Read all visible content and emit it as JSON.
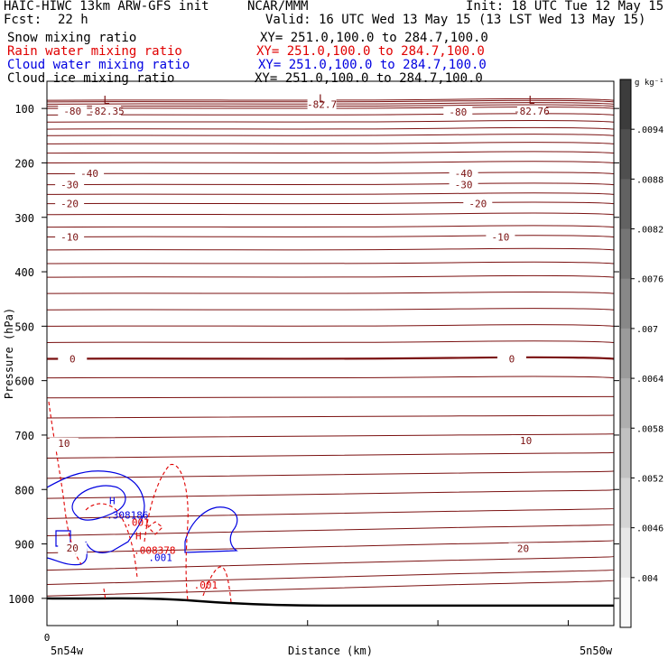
{
  "header": {
    "model": "HAIC-HIWC 13km ARW-GFS init",
    "org": "NCAR/MMM",
    "init": "Init: 18 UTC Tue 12 May 15",
    "fcst_label": "Fcst:",
    "fcst_value": "22 h",
    "valid": "Valid: 16 UTC Wed 13 May 15 (13 LST Wed 13 May 15)"
  },
  "fields": [
    {
      "label": "Snow mixing ratio",
      "xy": "XY= 251.0,100.0 to 284.7,100.0",
      "color": "#000000"
    },
    {
      "label": "Rain water mixing ratio",
      "xy": "XY= 251.0,100.0 to 284.7,100.0",
      "color": "#e00000"
    },
    {
      "label": "Cloud water mixing ratio",
      "xy": "XY= 251.0,100.0 to 284.7,100.0",
      "color": "#0000e0"
    },
    {
      "label": "Cloud ice mixing ratio",
      "xy": "XY= 251.0,100.0 to 284.7,100.0",
      "color": "#000000"
    }
  ],
  "chart_data": {
    "type": "contour cross-section",
    "ylabel": "Pressure (hPa)",
    "xlabel": "Distance (km)",
    "x_start_label": "5n54w",
    "x_end_label": "5n50w",
    "x_origin_tick": "0",
    "y_ticks": [
      100,
      200,
      300,
      400,
      500,
      600,
      700,
      800,
      900,
      1000
    ],
    "ylim": [
      1050,
      50
    ],
    "temperature_contours": [
      {
        "level": "-80",
        "p": 105
      },
      {
        "level": "-40",
        "p": 220
      },
      {
        "level": "-30",
        "p": 240
      },
      {
        "level": "-20",
        "p": 275
      },
      {
        "level": "-10",
        "p": 336
      },
      {
        "level": "0",
        "p": 560
      },
      {
        "level": "10",
        "p": 720
      },
      {
        "level": "20",
        "p": 910
      }
    ],
    "temperature_labels": [
      {
        "text": "-80",
        "x_frac": 0.045,
        "p": 105
      },
      {
        "text": "-82.35",
        "x_frac": 0.105,
        "p": 105
      },
      {
        "text": "-82.7",
        "x_frac": 0.485,
        "p": 92
      },
      {
        "text": "-80",
        "x_frac": 0.725,
        "p": 106
      },
      {
        "text": "-82.76",
        "x_frac": 0.855,
        "p": 105
      },
      {
        "text": "-40",
        "x_frac": 0.075,
        "p": 219
      },
      {
        "text": "-40",
        "x_frac": 0.735,
        "p": 219
      },
      {
        "text": "-30",
        "x_frac": 0.04,
        "p": 240
      },
      {
        "text": "-30",
        "x_frac": 0.735,
        "p": 240
      },
      {
        "text": "-20",
        "x_frac": 0.04,
        "p": 275
      },
      {
        "text": "-20",
        "x_frac": 0.76,
        "p": 275
      },
      {
        "text": "-10",
        "x_frac": 0.04,
        "p": 336
      },
      {
        "text": "-10",
        "x_frac": 0.8,
        "p": 336
      },
      {
        "text": "0",
        "x_frac": 0.045,
        "p": 560
      },
      {
        "text": "0",
        "x_frac": 0.82,
        "p": 560
      },
      {
        "text": "10",
        "x_frac": 0.03,
        "p": 715
      },
      {
        "text": "10",
        "x_frac": 0.845,
        "p": 710
      },
      {
        "text": "20",
        "x_frac": 0.045,
        "p": 907
      },
      {
        "text": "20",
        "x_frac": 0.84,
        "p": 908
      }
    ],
    "lows": [
      {
        "text": "L",
        "x_frac": 0.105,
        "p": 85
      },
      {
        "text": "L",
        "x_frac": 0.485,
        "p": 82
      },
      {
        "text": "L",
        "x_frac": 0.855,
        "p": 85
      }
    ],
    "cloud_water_max": {
      "text": ".308186",
      "marker": "H",
      "x_frac": 0.12,
      "p": 840
    },
    "rain_max": {
      "text": ".008378",
      "marker": "H",
      "x_frac": 0.19,
      "p": 905
    },
    "contour_value_labels": [
      {
        "text": ".001",
        "color": "red",
        "x_frac": 0.16,
        "p": 860
      },
      {
        "text": ".001",
        "color": "blue",
        "x_frac": 0.2,
        "p": 925
      },
      {
        "text": ".001",
        "color": "red",
        "x_frac": 0.28,
        "p": 975
      }
    ],
    "colorbar": {
      "unit": "g kg⁻¹",
      "ticks": [
        ".0094",
        ".0088",
        ".0082",
        ".0076",
        ".007",
        ".0064",
        ".0058",
        ".0052",
        ".0046",
        ".004"
      ]
    }
  }
}
